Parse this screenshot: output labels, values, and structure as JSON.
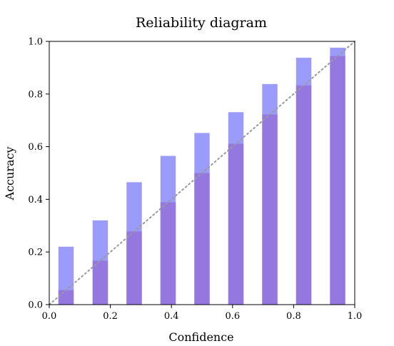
{
  "chart_data": {
    "type": "bar",
    "title": "Reliability diagram",
    "xlabel": "Confidence",
    "ylabel": "Accuracy",
    "xlim": [
      0.0,
      1.0
    ],
    "ylim": [
      0.0,
      1.0
    ],
    "xticks": [
      "0.0",
      "0.2",
      "0.4",
      "0.6",
      "0.8",
      "1.0"
    ],
    "yticks": [
      "0.0",
      "0.2",
      "0.4",
      "0.6",
      "0.8",
      "1.0"
    ],
    "bin_centers": [
      0.055,
      0.167,
      0.278,
      0.389,
      0.5,
      0.611,
      0.722,
      0.833,
      0.944
    ],
    "bar_width": 0.05,
    "series": [
      {
        "key": "accuracy",
        "values": [
          0.22,
          0.32,
          0.465,
          0.565,
          0.652,
          0.731,
          0.838,
          0.938,
          0.976
        ],
        "color": "#9b9bfb"
      },
      {
        "key": "confidence",
        "values": [
          0.055,
          0.167,
          0.278,
          0.389,
          0.5,
          0.611,
          0.722,
          0.833,
          0.944
        ],
        "color": "#9478e0"
      }
    ],
    "diagonal": {
      "from": [
        0.0,
        0.0
      ],
      "to": [
        1.0,
        1.0
      ],
      "style": "dotted",
      "color": "#999999"
    },
    "grid": false
  }
}
